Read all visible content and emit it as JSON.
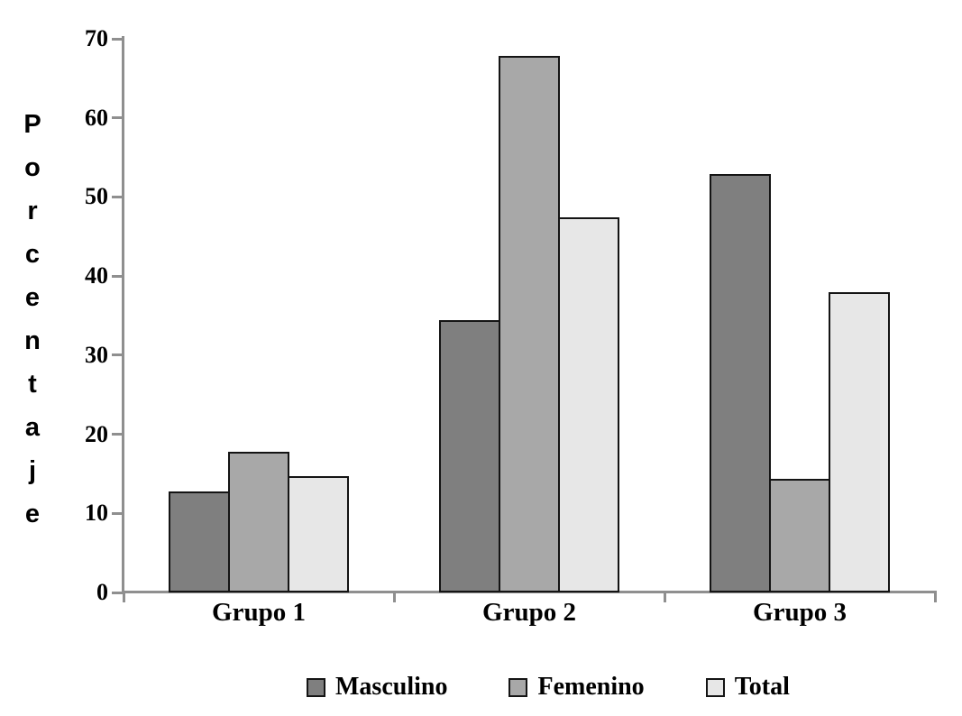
{
  "chart_data": {
    "type": "bar",
    "title": "",
    "categories": [
      "Grupo 1",
      "Grupo 2",
      "Grupo 3"
    ],
    "series": [
      {
        "name": "Masculino",
        "color": "#7f7f7f",
        "values": [
          12.8,
          34.4,
          52.9
        ]
      },
      {
        "name": "Femenino",
        "color": "#a8a8a8",
        "values": [
          17.8,
          67.8,
          14.4
        ]
      },
      {
        "name": "Total",
        "color": "#e7e7e7",
        "values": [
          14.7,
          47.4,
          38.0
        ]
      }
    ],
    "xlabel": "",
    "ylabel": "Porcentaje",
    "ylim": [
      0,
      70
    ],
    "yticks": [
      0,
      10,
      20,
      30,
      40,
      50,
      60,
      70
    ],
    "grid": false,
    "legend_position": "bottom",
    "axis_color": "#8f8f8f",
    "bar_outline_color": "#141414",
    "text_color": "#000000",
    "background_color": "#ffffff"
  }
}
